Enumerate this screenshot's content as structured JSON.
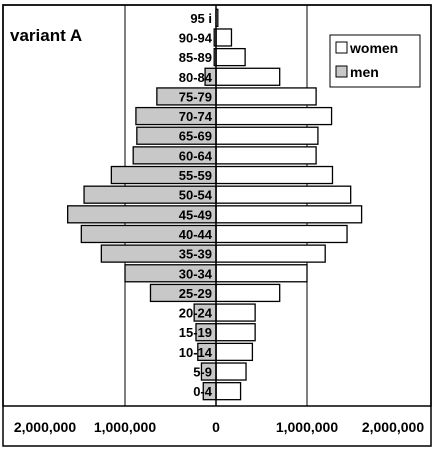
{
  "chart_data": {
    "type": "bar",
    "orientation": "horizontal",
    "layout": "population-pyramid",
    "title": "variant A",
    "categories": [
      "95 i",
      "90-94",
      "85-89",
      "80-84",
      "75-79",
      "70-74",
      "65-69",
      "60-64",
      "55-59",
      "50-54",
      "45-49",
      "40-44",
      "35-39",
      "30-34",
      "25-29",
      "20-24",
      "15-19",
      "10-14",
      "5-9",
      "0-4"
    ],
    "series": [
      {
        "name": "women",
        "side": "right",
        "color": "#ffffff",
        "values": [
          20000,
          170000,
          320000,
          700000,
          1100000,
          1270000,
          1120000,
          1100000,
          1280000,
          1480000,
          1600000,
          1440000,
          1200000,
          1000000,
          700000,
          430000,
          430000,
          400000,
          330000,
          270000
        ]
      },
      {
        "name": "men",
        "side": "left",
        "color": "#c8c8c8",
        "values": [
          0,
          20000,
          20000,
          120000,
          650000,
          880000,
          870000,
          910000,
          1150000,
          1450000,
          1630000,
          1480000,
          1260000,
          1000000,
          720000,
          240000,
          220000,
          200000,
          160000,
          140000
        ]
      }
    ],
    "xaxis": {
      "ticks": [
        -2000000,
        -1000000,
        0,
        1000000,
        2000000
      ],
      "tick_labels": [
        "2,000,000",
        "1,000,000",
        "0",
        "1,000,000",
        "2,000,000"
      ],
      "range": [
        -2000000,
        2000000
      ]
    },
    "grid": {
      "vertical": true,
      "horizontal": false
    },
    "legend": {
      "position": "top-right",
      "entries": [
        "women",
        "men"
      ]
    }
  }
}
